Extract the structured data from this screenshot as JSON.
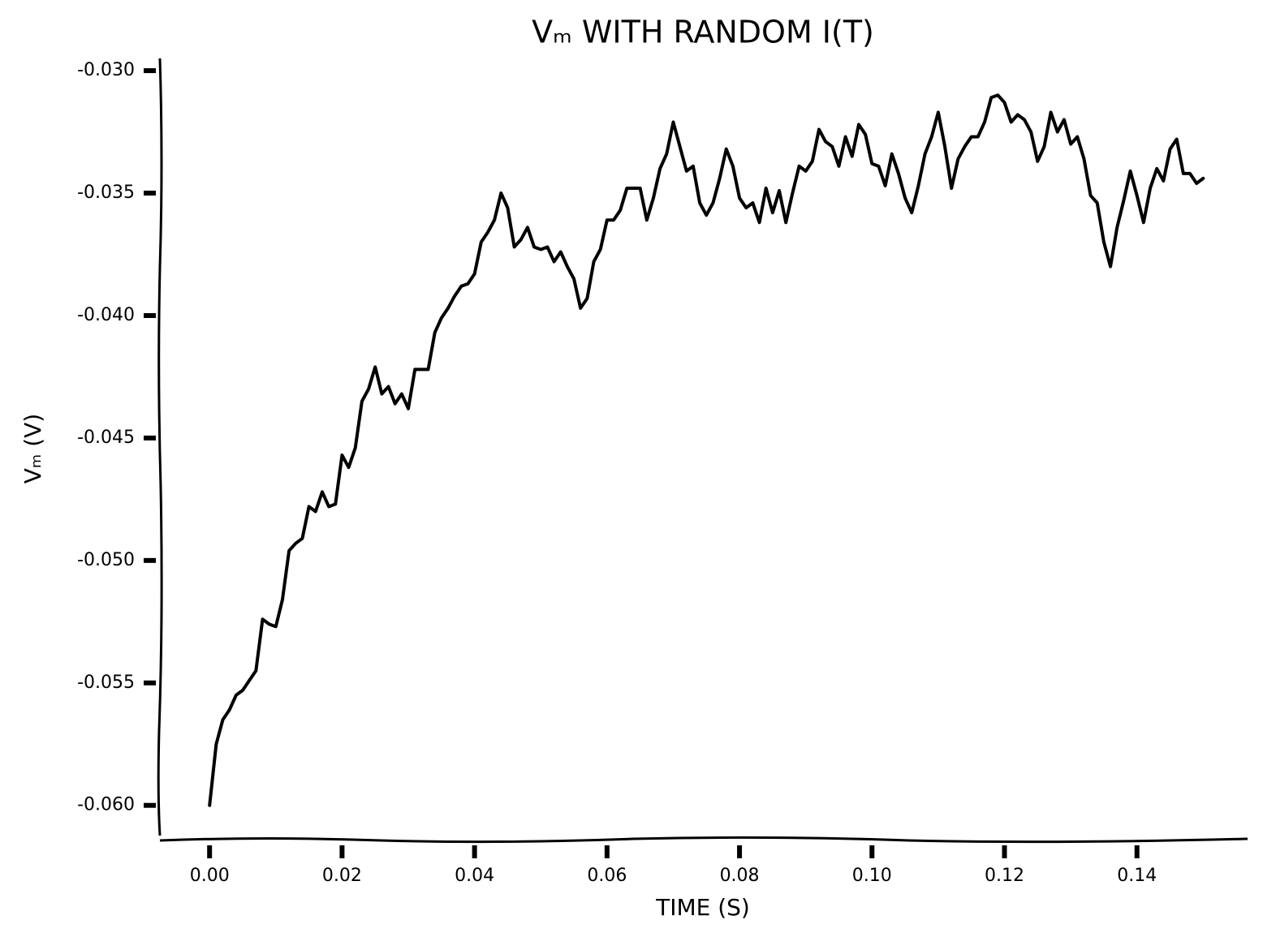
{
  "chart_data": {
    "type": "line",
    "title": "Vₘ WITH RANDOM I(T)",
    "x_label": "TIME (S)",
    "y_label": "Vₘ (V)",
    "color": "#000000",
    "xlim": [
      -0.0075,
      0.1567
    ],
    "ylim": [
      -0.0614,
      -0.0295
    ],
    "xticks": [
      {
        "value": 0,
        "label": "0.00"
      },
      0.02,
      0.04,
      0.06,
      0.08,
      {
        "value": 0.1,
        "label": "0.10"
      },
      0.12,
      0.14
    ],
    "yticks": [
      {
        "value": -0.03,
        "label": "-0.030"
      },
      -0.035,
      {
        "value": -0.04,
        "label": "-0.040"
      },
      -0.045,
      {
        "value": -0.05,
        "label": "-0.050"
      },
      -0.055,
      {
        "value": -0.06,
        "label": "-0.060"
      }
    ],
    "x": [
      0,
      0.001,
      0.002,
      0.003,
      0.004,
      0.005,
      0.006,
      0.007,
      0.008,
      0.009,
      0.01,
      0.011,
      0.012,
      0.013,
      0.014,
      0.015,
      0.016,
      0.017,
      0.018,
      0.019,
      0.02,
      0.021,
      0.022,
      0.023,
      0.024,
      0.025,
      0.026,
      0.027,
      0.028,
      0.029,
      0.03,
      0.031,
      0.032,
      0.033,
      0.034,
      0.035,
      0.036,
      0.037,
      0.038,
      0.039,
      0.04,
      0.041,
      0.042,
      0.043,
      0.044,
      0.045,
      0.046,
      0.047,
      0.048,
      0.049,
      0.05,
      0.051,
      0.052,
      0.053,
      0.054,
      0.055,
      0.056,
      0.057,
      0.058,
      0.059,
      0.06,
      0.061,
      0.062,
      0.063,
      0.064,
      0.065,
      0.066,
      0.067,
      0.068,
      0.069,
      0.07,
      0.071,
      0.072,
      0.073,
      0.074,
      0.075,
      0.076,
      0.077,
      0.078,
      0.079,
      0.08,
      0.081,
      0.082,
      0.083,
      0.084,
      0.085,
      0.086,
      0.087,
      0.088,
      0.089,
      0.09,
      0.091,
      0.092,
      0.093,
      0.094,
      0.095,
      0.096,
      0.097,
      0.098,
      0.099,
      0.1,
      0.101,
      0.102,
      0.103,
      0.104,
      0.105,
      0.106,
      0.107,
      0.108,
      0.109,
      0.11,
      0.111,
      0.112,
      0.113,
      0.114,
      0.115,
      0.116,
      0.117,
      0.118,
      0.119,
      0.12,
      0.121,
      0.122,
      0.123,
      0.124,
      0.125,
      0.126,
      0.127,
      0.128,
      0.129,
      0.13,
      0.131,
      0.132,
      0.133,
      0.134,
      0.135,
      0.136,
      0.137,
      0.138,
      0.139,
      0.14,
      0.141,
      0.142,
      0.143,
      0.144,
      0.145,
      0.146,
      0.147,
      0.148,
      0.149,
      0.15
    ],
    "values": [
      -0.06,
      -0.0575,
      -0.0565,
      -0.0561,
      -0.0555,
      -0.0553,
      -0.0549,
      -0.0545,
      -0.0524,
      -0.0526,
      -0.0527,
      -0.0516,
      -0.0496,
      -0.0493,
      -0.0491,
      -0.0478,
      -0.048,
      -0.0472,
      -0.0478,
      -0.0477,
      -0.0457,
      -0.0462,
      -0.0454,
      -0.0435,
      -0.043,
      -0.0421,
      -0.0432,
      -0.0429,
      -0.0436,
      -0.0432,
      -0.0438,
      -0.0422,
      -0.0422,
      -0.0422,
      -0.0407,
      -0.0401,
      -0.0397,
      -0.0392,
      -0.0388,
      -0.0387,
      -0.0383,
      -0.037,
      -0.0366,
      -0.0361,
      -0.035,
      -0.0356,
      -0.0372,
      -0.0369,
      -0.0364,
      -0.0372,
      -0.0373,
      -0.0372,
      -0.0378,
      -0.0374,
      -0.038,
      -0.0385,
      -0.0397,
      -0.0393,
      -0.0378,
      -0.0373,
      -0.0361,
      -0.0361,
      -0.0357,
      -0.0348,
      -0.0348,
      -0.0348,
      -0.0361,
      -0.0352,
      -0.034,
      -0.0334,
      -0.0321,
      -0.0331,
      -0.0341,
      -0.0339,
      -0.0354,
      -0.0359,
      -0.0354,
      -0.0344,
      -0.0332,
      -0.0339,
      -0.0352,
      -0.0356,
      -0.0354,
      -0.0362,
      -0.0348,
      -0.0358,
      -0.0349,
      -0.0362,
      -0.035,
      -0.0339,
      -0.0341,
      -0.0337,
      -0.0324,
      -0.0329,
      -0.0331,
      -0.0339,
      -0.0327,
      -0.0335,
      -0.0322,
      -0.0326,
      -0.0338,
      -0.0339,
      -0.0347,
      -0.0334,
      -0.0342,
      -0.0352,
      -0.0358,
      -0.0347,
      -0.0334,
      -0.0327,
      -0.0317,
      -0.0331,
      -0.0348,
      -0.0336,
      -0.0331,
      -0.0327,
      -0.0327,
      -0.0321,
      -0.0311,
      -0.031,
      -0.0313,
      -0.0321,
      -0.0318,
      -0.032,
      -0.0325,
      -0.0337,
      -0.0331,
      -0.0317,
      -0.0325,
      -0.032,
      -0.033,
      -0.0327,
      -0.0336,
      -0.0351,
      -0.0354,
      -0.037,
      -0.038,
      -0.0364,
      -0.0353,
      -0.0341,
      -0.0351,
      -0.0362,
      -0.0348,
      -0.034,
      -0.0345,
      -0.0332,
      -0.0328,
      -0.0342,
      -0.0342,
      -0.0346,
      -0.0344
    ]
  }
}
